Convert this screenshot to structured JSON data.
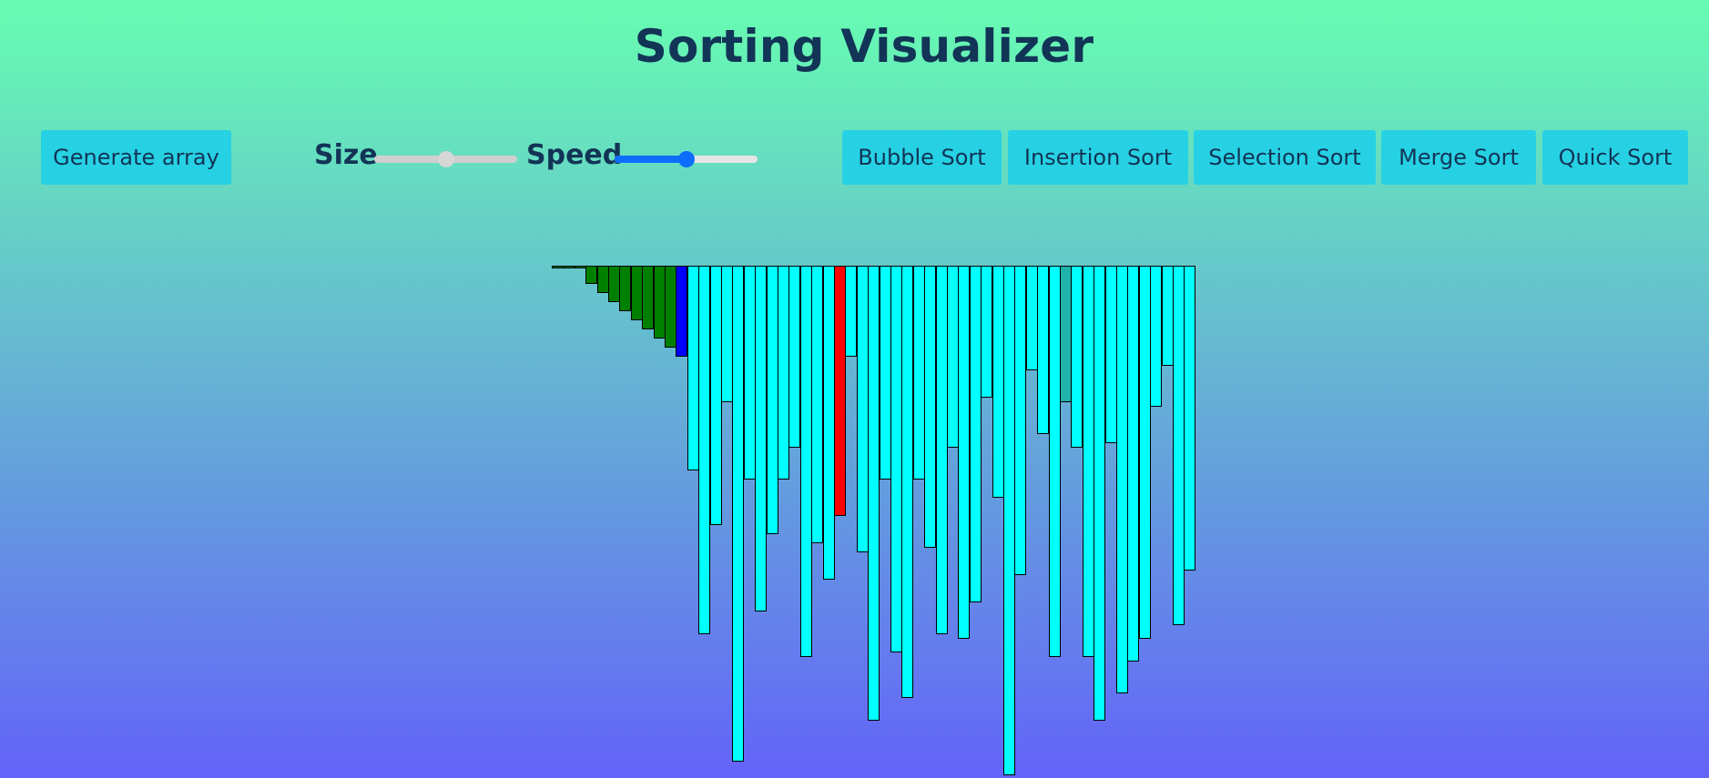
{
  "page": {
    "title": "Sorting Visualizer"
  },
  "toolbar": {
    "generate_label": "Generate array",
    "size_label": "Size",
    "speed_label": "Speed",
    "size_value": 0.5,
    "speed_value": 0.5,
    "algorithms": [
      "Bubble Sort",
      "Insertion Sort",
      "Selection Sort",
      "Merge Sort",
      "Quick Sort"
    ]
  },
  "colors": {
    "button_bg": "#27d1e4",
    "text": "#123456",
    "bar_default": "#00ffff",
    "bar_sorted": "#008000",
    "bar_current": "#0000ff",
    "bar_compare": "#ff0000",
    "bar_teal": "#20b2aa",
    "size_thumb": "#d6d6d6",
    "speed_fill": "#0d6efd"
  },
  "array": {
    "values": [
      3,
      3,
      3,
      20,
      30,
      40,
      50,
      60,
      70,
      80,
      90,
      100,
      225,
      405,
      285,
      150,
      545,
      235,
      380,
      295,
      235,
      200,
      430,
      305,
      345,
      275,
      100,
      315,
      500,
      235,
      425,
      475,
      235,
      310,
      405,
      200,
      410,
      370,
      145,
      255,
      560,
      340,
      115,
      185,
      430,
      150,
      200,
      430,
      500,
      195,
      470,
      435,
      410,
      155,
      110,
      395,
      335
    ],
    "states": [
      "sorted",
      "sorted",
      "sorted",
      "sorted",
      "sorted",
      "sorted",
      "sorted",
      "sorted",
      "sorted",
      "sorted",
      "sorted",
      "current",
      "default",
      "default",
      "default",
      "default",
      "default",
      "default",
      "default",
      "default",
      "default",
      "default",
      "default",
      "default",
      "default",
      "compare",
      "default",
      "default",
      "default",
      "default",
      "default",
      "default",
      "default",
      "default",
      "default",
      "default",
      "default",
      "default",
      "default",
      "default",
      "default",
      "default",
      "default",
      "default",
      "default",
      "teal",
      "default",
      "default",
      "default",
      "default",
      "default",
      "default",
      "default",
      "default",
      "default",
      "default",
      "default"
    ]
  }
}
